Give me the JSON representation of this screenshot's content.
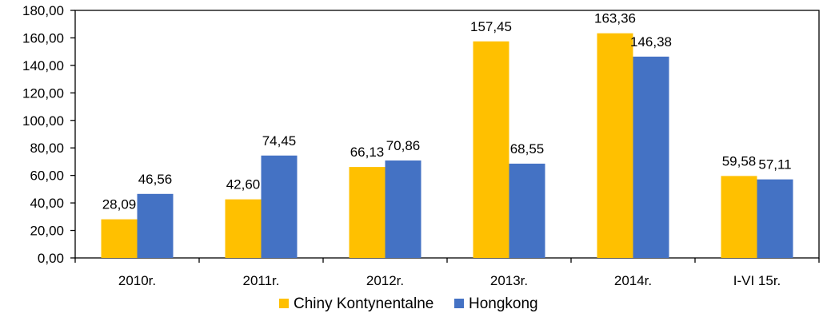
{
  "chart_data": {
    "type": "bar",
    "categories": [
      "2010r.",
      "2011r.",
      "2012r.",
      "2013r.",
      "2014r.",
      "I-VI 15r."
    ],
    "series": [
      {
        "name": "Chiny Kontynentalne",
        "color": "#FFC000",
        "values": [
          28.09,
          42.6,
          66.13,
          157.45,
          163.36,
          59.58
        ],
        "labels": [
          "28,09",
          "42,60",
          "66,13",
          "157,45",
          "163,36",
          "59,58"
        ]
      },
      {
        "name": "Hongkong",
        "color": "#4472C4",
        "values": [
          46.56,
          74.45,
          70.86,
          68.55,
          146.38,
          57.11
        ],
        "labels": [
          "46,56",
          "74,45",
          "70,86",
          "68,55",
          "146,38",
          "57,11"
        ]
      }
    ],
    "ylim": [
      0,
      180
    ],
    "yticks": [
      0,
      20,
      40,
      60,
      80,
      100,
      120,
      140,
      160,
      180
    ],
    "ytick_labels": [
      "0,00",
      "20,00",
      "40,00",
      "60,00",
      "80,00",
      "100,00",
      "120,00",
      "140,00",
      "160,00",
      "180,00"
    ],
    "grid": false,
    "legend_position": "bottom"
  }
}
